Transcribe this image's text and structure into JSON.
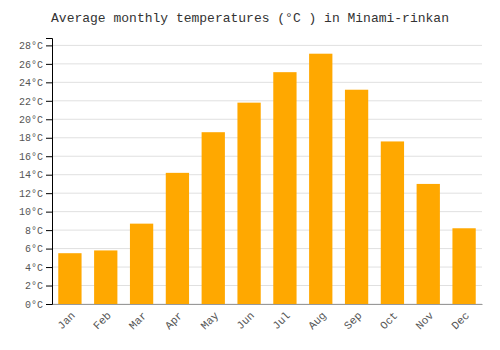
{
  "chart_data": {
    "type": "bar",
    "title": "Average monthly temperatures (°C ) in Minami-rinkan",
    "categories": [
      "Jan",
      "Feb",
      "Mar",
      "Apr",
      "May",
      "Jun",
      "Jul",
      "Aug",
      "Sep",
      "Oct",
      "Nov",
      "Dec"
    ],
    "values": [
      5.5,
      5.8,
      8.7,
      14.2,
      18.6,
      21.8,
      25.1,
      27.1,
      23.2,
      17.6,
      13.0,
      8.2
    ],
    "color": "#FFA800",
    "ylim": [
      0,
      28.8
    ],
    "yticks": [
      {
        "value": 0,
        "label": "0°C"
      },
      {
        "value": 2,
        "label": "2°C"
      },
      {
        "value": 4,
        "label": "4°C"
      },
      {
        "value": 6,
        "label": "6°C"
      },
      {
        "value": 8,
        "label": "8°C"
      },
      {
        "value": 10,
        "label": "10°C"
      },
      {
        "value": 12,
        "label": "12°C"
      },
      {
        "value": 14,
        "label": "14°C"
      },
      {
        "value": 16,
        "label": "16°C"
      },
      {
        "value": 18,
        "label": "18°C"
      },
      {
        "value": 20,
        "label": "20°C"
      },
      {
        "value": 22,
        "label": "22°C"
      },
      {
        "value": 24,
        "label": "24°C"
      },
      {
        "value": 26,
        "label": "26°C"
      },
      {
        "value": 28,
        "label": "28°C"
      }
    ],
    "grid": true
  }
}
